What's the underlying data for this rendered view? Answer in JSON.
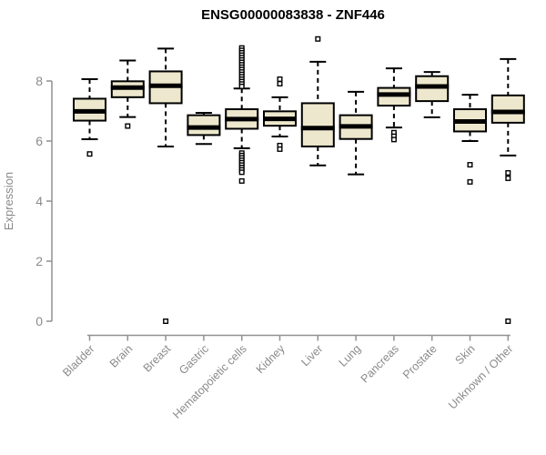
{
  "title": "ENSG00000083838 - ZNF446",
  "chart_data": {
    "type": "boxplot",
    "title": "ENSG00000083838 - ZNF446",
    "ylabel": "Expression",
    "xlabel": "",
    "ylim": [
      0,
      9.5
    ],
    "yticks": [
      0,
      2,
      4,
      6,
      8
    ],
    "grid": false,
    "legend": false,
    "categories": [
      "Bladder",
      "Brain",
      "Breast",
      "Gastric",
      "Hematopoietic cells",
      "Kidney",
      "Liver",
      "Lung",
      "Pancreas",
      "Prostate",
      "Skin",
      "Unknown / Other"
    ],
    "series": [
      {
        "name": "Bladder",
        "whisker_low": 6.06,
        "q1": 6.68,
        "median": 6.99,
        "q3": 7.41,
        "whisker_high": 8.06,
        "outliers": [
          5.57
        ]
      },
      {
        "name": "Brain",
        "whisker_low": 6.8,
        "q1": 7.46,
        "median": 7.78,
        "q3": 7.99,
        "whisker_high": 8.68,
        "outliers": [
          6.5
        ]
      },
      {
        "name": "Breast",
        "whisker_low": 5.82,
        "q1": 7.26,
        "median": 7.84,
        "q3": 8.32,
        "whisker_high": 9.08,
        "outliers": [
          0.0
        ]
      },
      {
        "name": "Gastric",
        "whisker_low": 5.9,
        "q1": 6.2,
        "median": 6.45,
        "q3": 6.86,
        "whisker_high": 6.94,
        "outliers": []
      },
      {
        "name": "Hematopoietic cells",
        "whisker_low": 5.76,
        "q1": 6.41,
        "median": 6.73,
        "q3": 7.06,
        "whisker_high": 7.75,
        "outliers": [
          9.1,
          9.02,
          8.94,
          8.86,
          8.78,
          8.7,
          8.62,
          8.54,
          8.46,
          8.38,
          8.3,
          8.22,
          8.14,
          8.06,
          7.98,
          7.9,
          7.82,
          5.6,
          5.52,
          5.44,
          5.36,
          5.28,
          5.2,
          5.12,
          5.04,
          4.96,
          4.67
        ]
      },
      {
        "name": "Kidney",
        "whisker_low": 6.15,
        "q1": 6.51,
        "median": 6.74,
        "q3": 6.99,
        "whisker_high": 7.46,
        "outliers": [
          8.06,
          7.91,
          5.85,
          5.73
        ]
      },
      {
        "name": "Liver",
        "whisker_low": 5.19,
        "q1": 5.82,
        "median": 6.43,
        "q3": 7.26,
        "whisker_high": 8.64,
        "outliers": [
          9.4
        ]
      },
      {
        "name": "Lung",
        "whisker_low": 4.89,
        "q1": 6.07,
        "median": 6.49,
        "q3": 6.86,
        "whisker_high": 7.64,
        "outliers": []
      },
      {
        "name": "Pancreas",
        "whisker_low": 6.45,
        "q1": 7.18,
        "median": 7.55,
        "q3": 7.77,
        "whisker_high": 8.42,
        "outliers": [
          6.28,
          6.16,
          6.05
        ]
      },
      {
        "name": "Prostate",
        "whisker_low": 6.79,
        "q1": 7.33,
        "median": 7.82,
        "q3": 8.16,
        "whisker_high": 8.3,
        "outliers": []
      },
      {
        "name": "Skin",
        "whisker_low": 6.0,
        "q1": 6.32,
        "median": 6.65,
        "q3": 7.06,
        "whisker_high": 7.54,
        "outliers": [
          5.21,
          4.64
        ]
      },
      {
        "name": "Unknown / Other",
        "whisker_low": 5.52,
        "q1": 6.61,
        "median": 6.97,
        "q3": 7.52,
        "whisker_high": 8.73,
        "outliers": [
          4.94,
          4.76,
          0.0
        ]
      }
    ],
    "colors": {
      "box_fill": "#EDE8CD",
      "box_line": "#000000",
      "median_line": "#000000",
      "whisker_line": "#000000",
      "outlier_line": "#000000",
      "axis": "#919191",
      "tick_label": "#8A8A8A",
      "title": "#000000",
      "background": "#FFFFFF"
    }
  }
}
